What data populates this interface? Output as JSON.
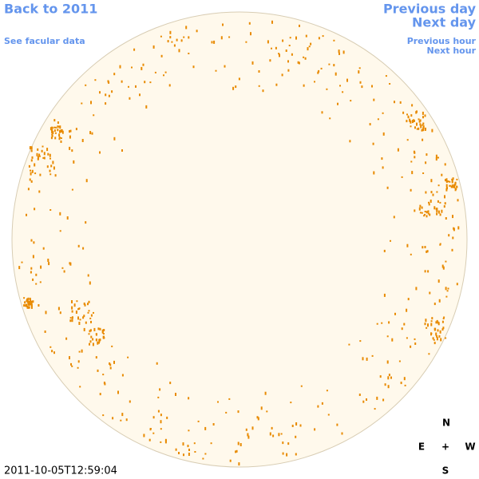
{
  "links": {
    "back_to_year": "Back to 2011",
    "facular_data": "See facular data",
    "previous_day": "Previous day",
    "next_day": "Next day",
    "previous_hour": "Previous hour",
    "next_hour": "Next hour"
  },
  "timestamp": "2011-10-05T12:59:04",
  "compass": {
    "north": "N",
    "east": "E",
    "center": "+",
    "west": "W",
    "south": "S"
  }
}
